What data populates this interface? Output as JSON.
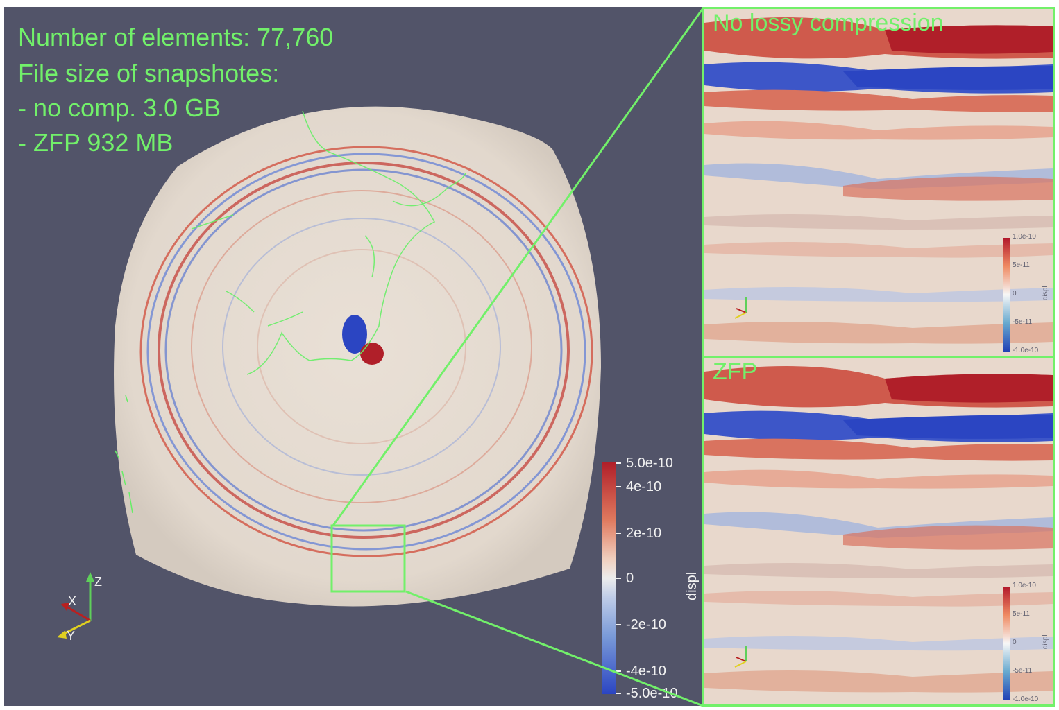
{
  "info": {
    "line1": "Number of elements: 77,760",
    "line2": "File size of snapshotes:",
    "line3": "- no comp. 3.0 GB",
    "line4": "- ZFP 932 MB"
  },
  "main_colorbar": {
    "title": "displ",
    "ticks": [
      "5.0e-10",
      "4e-10",
      "2e-10",
      "0",
      "-2e-10",
      "-4e-10",
      "-5.0e-10"
    ]
  },
  "axes": {
    "x": "X",
    "y": "Y",
    "z": "Z"
  },
  "panels": [
    {
      "title": "No lossy compression",
      "colorbar": {
        "title": "displ",
        "ticks": [
          "1.0e-10",
          "5e-11",
          "0",
          "-5e-11",
          "-1.0e-10"
        ]
      }
    },
    {
      "title": "ZFP",
      "colorbar": {
        "title": "displ",
        "ticks": [
          "1.0e-10",
          "5e-11",
          "0",
          "-5e-11",
          "-1.0e-10"
        ]
      }
    }
  ],
  "colors": {
    "highlight": "#72f06a",
    "background": "#525469",
    "positive": "#b01f29",
    "negative": "#2b45c2",
    "neutral": "#e4dcd2"
  }
}
